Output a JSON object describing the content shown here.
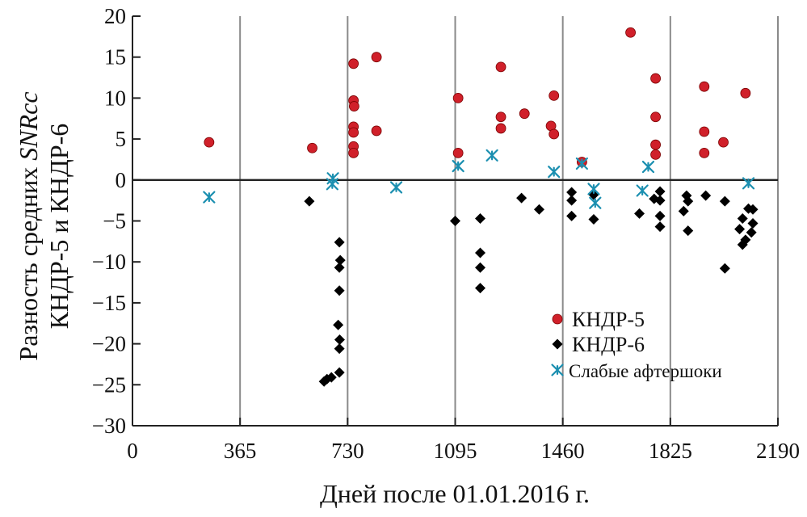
{
  "chart_data": {
    "type": "scatter",
    "xlabel": "Дней после 01.01.2016 г.",
    "ylabel_line1": "Разность средних ",
    "ylabel_line1_italic": "SNRcc",
    "ylabel_line2": "КНДР-5 и КНДР-6",
    "xlim": [
      0,
      2190
    ],
    "ylim": [
      -30,
      20
    ],
    "x_ticks": [
      0,
      365,
      730,
      1095,
      1460,
      1825,
      2190
    ],
    "y_ticks": [
      -30,
      -25,
      -20,
      -15,
      -10,
      -5,
      0,
      5,
      10,
      15,
      20
    ],
    "x_tick_labels": [
      "0",
      "365",
      "730",
      "1095",
      "1460",
      "1825",
      "2190"
    ],
    "y_tick_labels": [
      "−30",
      "−25",
      "−20",
      "−15",
      "−10",
      "−5",
      "0",
      "5",
      "10",
      "15",
      "20"
    ],
    "grid": "vertical",
    "legend_position": "bottom-right",
    "colors": {
      "dprk5": "#d0202a",
      "dprk6": "#000000",
      "aftershocks": "#1b8fb0"
    },
    "series": [
      {
        "name": "КНДР-5",
        "marker": "circle",
        "points": [
          [
            260,
            4.6
          ],
          [
            610,
            3.9
          ],
          [
            750,
            14.2
          ],
          [
            750,
            9.7
          ],
          [
            752,
            9.0
          ],
          [
            750,
            6.5
          ],
          [
            750,
            5.8
          ],
          [
            750,
            4.1
          ],
          [
            750,
            3.3
          ],
          [
            828,
            15.0
          ],
          [
            828,
            6.0
          ],
          [
            1105,
            10.0
          ],
          [
            1105,
            3.3
          ],
          [
            1250,
            13.8
          ],
          [
            1250,
            7.7
          ],
          [
            1250,
            6.3
          ],
          [
            1330,
            8.1
          ],
          [
            1420,
            6.6
          ],
          [
            1430,
            5.6
          ],
          [
            1430,
            10.3
          ],
          [
            1525,
            2.2
          ],
          [
            1690,
            18.0
          ],
          [
            1775,
            12.4
          ],
          [
            1775,
            7.7
          ],
          [
            1775,
            4.3
          ],
          [
            1775,
            3.1
          ],
          [
            1940,
            11.4
          ],
          [
            1940,
            5.9
          ],
          [
            1940,
            3.3
          ],
          [
            2005,
            4.6
          ],
          [
            2080,
            10.6
          ]
        ]
      },
      {
        "name": "КНДР-6",
        "marker": "diamond",
        "points": [
          [
            600,
            -2.6
          ],
          [
            650,
            -24.6
          ],
          [
            660,
            -24.3
          ],
          [
            675,
            -24.1
          ],
          [
            702,
            -7.6
          ],
          [
            705,
            -9.8
          ],
          [
            702,
            -10.7
          ],
          [
            702,
            -13.5
          ],
          [
            698,
            -17.7
          ],
          [
            703,
            -19.5
          ],
          [
            702,
            -20.6
          ],
          [
            702,
            -23.5
          ],
          [
            1095,
            -5.0
          ],
          [
            1180,
            -4.7
          ],
          [
            1180,
            -8.9
          ],
          [
            1180,
            -10.7
          ],
          [
            1180,
            -13.2
          ],
          [
            1320,
            -2.2
          ],
          [
            1380,
            -3.6
          ],
          [
            1490,
            -1.5
          ],
          [
            1490,
            -2.5
          ],
          [
            1490,
            -4.4
          ],
          [
            1565,
            -1.8
          ],
          [
            1565,
            -4.8
          ],
          [
            1720,
            -4.1
          ],
          [
            1770,
            -2.3
          ],
          [
            1790,
            -1.4
          ],
          [
            1790,
            -2.5
          ],
          [
            1790,
            -4.4
          ],
          [
            1790,
            -5.7
          ],
          [
            1870,
            -3.8
          ],
          [
            1880,
            -1.9
          ],
          [
            1885,
            -2.6
          ],
          [
            1885,
            -6.2
          ],
          [
            1945,
            -1.9
          ],
          [
            2010,
            -2.6
          ],
          [
            2010,
            -10.8
          ],
          [
            2060,
            -6.0
          ],
          [
            2070,
            -4.7
          ],
          [
            2070,
            -7.9
          ],
          [
            2080,
            -7.3
          ],
          [
            2090,
            -3.5
          ],
          [
            2105,
            -3.6
          ],
          [
            2105,
            -5.3
          ],
          [
            2100,
            -6.4
          ]
        ]
      },
      {
        "name": "Слабые афтершоки",
        "marker": "asterisk",
        "points": [
          [
            260,
            -2.1
          ],
          [
            680,
            0.2
          ],
          [
            678,
            -0.5
          ],
          [
            895,
            -0.9
          ],
          [
            1105,
            1.7
          ],
          [
            1220,
            3.0
          ],
          [
            1430,
            1.0
          ],
          [
            1525,
            2.0
          ],
          [
            1565,
            -1.1
          ],
          [
            1570,
            -2.8
          ],
          [
            1730,
            -1.3
          ],
          [
            1750,
            1.6
          ],
          [
            2090,
            -0.4
          ]
        ]
      }
    ]
  }
}
